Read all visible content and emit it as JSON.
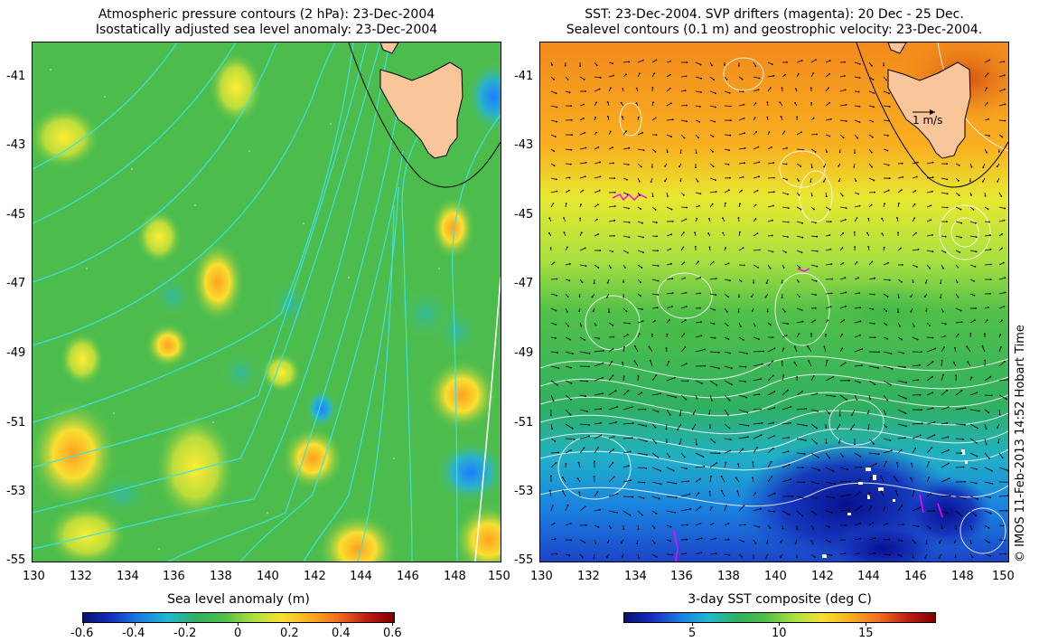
{
  "left_panel": {
    "title_line1": "Atmospheric pressure contours (2 hPa): 23-Dec-2004",
    "title_line2": "Isostatically adjusted sea level anomaly: 23-Dec-2004",
    "colorbar_title": "Sea level anomaly (m)",
    "colorbar_ticks": [
      "-0.6",
      "-0.4",
      "-0.2",
      "0",
      "0.2",
      "0.4",
      "0.6"
    ],
    "colorbar_range": [
      -0.6,
      0.6
    ]
  },
  "right_panel": {
    "title_line1": "SST: 23-Dec-2004. SVP drifters (magenta): 20 Dec - 25 Dec.",
    "title_line2": "Sealevel contours (0.1 m) and geostrophic velocity: 23-Dec-2004.",
    "colorbar_title": "3-day SST composite (deg C)",
    "colorbar_ticks": [
      "5",
      "10",
      "15"
    ],
    "colorbar_tick_values": [
      5,
      10,
      15
    ],
    "colorbar_range": [
      1,
      19
    ],
    "velocity_scale_label": "1 m/s"
  },
  "axes": {
    "x_ticks": [
      "130",
      "132",
      "134",
      "136",
      "138",
      "140",
      "142",
      "144",
      "146",
      "148",
      "150"
    ],
    "x_range": [
      130,
      150
    ],
    "y_ticks": [
      "-41",
      "-43",
      "-45",
      "-47",
      "-49",
      "-51",
      "-53",
      "-55"
    ],
    "y_range": [
      -55,
      -40
    ]
  },
  "credit": "© IMOS 11-Feb-2013 14:52 Hobart Time",
  "colors": {
    "land": "#f9c59a",
    "pressure_contour": "#40e0e0",
    "sealevel_contour": "#ffffff",
    "drifter": "#ff00ff"
  }
}
